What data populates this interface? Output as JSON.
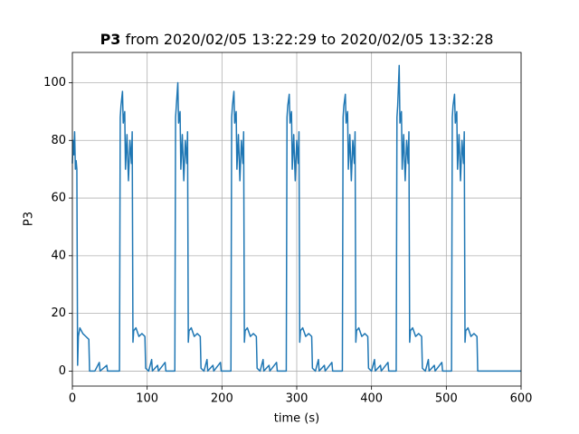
{
  "chart_data": {
    "type": "line",
    "title": {
      "bold": "P3",
      "text": "from 2020/02/05 13:22:29 to 2020/02/05 13:32:28"
    },
    "x_label": "time (s)",
    "y_label": "P3",
    "xlim": [
      0,
      600
    ],
    "ylim": [
      -5.2,
      110.5
    ],
    "xticks": [
      0,
      100,
      200,
      300,
      400,
      500,
      600
    ],
    "yticks": [
      0,
      20,
      40,
      60,
      80,
      100
    ],
    "grid": true,
    "x": [
      0,
      1,
      2,
      3,
      4,
      5,
      6,
      7,
      8,
      10,
      14,
      18,
      22,
      23,
      30,
      36,
      37,
      46,
      47,
      63,
      64,
      65,
      67,
      68,
      70,
      71,
      73,
      75,
      77,
      79,
      80,
      81,
      82,
      85,
      89,
      93,
      97,
      98,
      102,
      106,
      107,
      114,
      115,
      124,
      125,
      137,
      138,
      139,
      141,
      142,
      144,
      145,
      147,
      149,
      151,
      153,
      154,
      155,
      156,
      159,
      163,
      167,
      171,
      172,
      176,
      180,
      181,
      188,
      189,
      198,
      199,
      212,
      213,
      214,
      216,
      217,
      219,
      220,
      222,
      224,
      226,
      228,
      229,
      230,
      231,
      234,
      238,
      242,
      246,
      247,
      251,
      255,
      256,
      263,
      264,
      273,
      274,
      286,
      287,
      288,
      290,
      291,
      293,
      294,
      296,
      298,
      300,
      302,
      303,
      304,
      305,
      308,
      312,
      316,
      320,
      321,
      325,
      329,
      330,
      337,
      338,
      347,
      348,
      361,
      362,
      363,
      365,
      366,
      368,
      369,
      371,
      373,
      375,
      377,
      378,
      379,
      380,
      383,
      387,
      391,
      395,
      396,
      400,
      404,
      405,
      412,
      413,
      422,
      423,
      433,
      434,
      435,
      437,
      438,
      440,
      441,
      443,
      445,
      447,
      449,
      450,
      451,
      452,
      455,
      459,
      463,
      467,
      468,
      472,
      476,
      477,
      484,
      485,
      494,
      495,
      507,
      508,
      509,
      511,
      512,
      514,
      515,
      517,
      519,
      521,
      523,
      524,
      525,
      526,
      529,
      533,
      537,
      541,
      542,
      600
    ],
    "series": [
      {
        "name": "P3",
        "color": "#1f77b4",
        "values": [
          72,
          80,
          75,
          83,
          70,
          73,
          70,
          2,
          12,
          15,
          13,
          12,
          11,
          0,
          0,
          3,
          0,
          2,
          0,
          0,
          88,
          92,
          97,
          86,
          90,
          70,
          82,
          66,
          80,
          72,
          83,
          10,
          14,
          15,
          12,
          13,
          12,
          1,
          0,
          4,
          0,
          2,
          0,
          3,
          0,
          0,
          88,
          92,
          100,
          86,
          90,
          70,
          82,
          66,
          80,
          72,
          83,
          10,
          14,
          15,
          12,
          13,
          12,
          1,
          0,
          4,
          0,
          2,
          0,
          3,
          0,
          0,
          88,
          92,
          97,
          86,
          90,
          70,
          82,
          66,
          80,
          72,
          83,
          10,
          14,
          15,
          12,
          13,
          12,
          1,
          0,
          4,
          0,
          2,
          0,
          3,
          0,
          0,
          88,
          92,
          96,
          86,
          90,
          70,
          82,
          66,
          80,
          72,
          83,
          10,
          14,
          15,
          12,
          13,
          12,
          1,
          0,
          4,
          0,
          2,
          0,
          3,
          0,
          0,
          88,
          92,
          96,
          86,
          90,
          70,
          82,
          66,
          80,
          72,
          83,
          10,
          14,
          15,
          12,
          13,
          12,
          1,
          0,
          4,
          0,
          2,
          0,
          3,
          0,
          0,
          88,
          92,
          106,
          86,
          90,
          70,
          82,
          66,
          80,
          72,
          83,
          10,
          14,
          15,
          12,
          13,
          12,
          1,
          0,
          4,
          0,
          2,
          0,
          3,
          0,
          0,
          88,
          92,
          96,
          86,
          90,
          70,
          82,
          66,
          80,
          72,
          83,
          10,
          14,
          15,
          12,
          13,
          12,
          0,
          0
        ]
      }
    ]
  }
}
